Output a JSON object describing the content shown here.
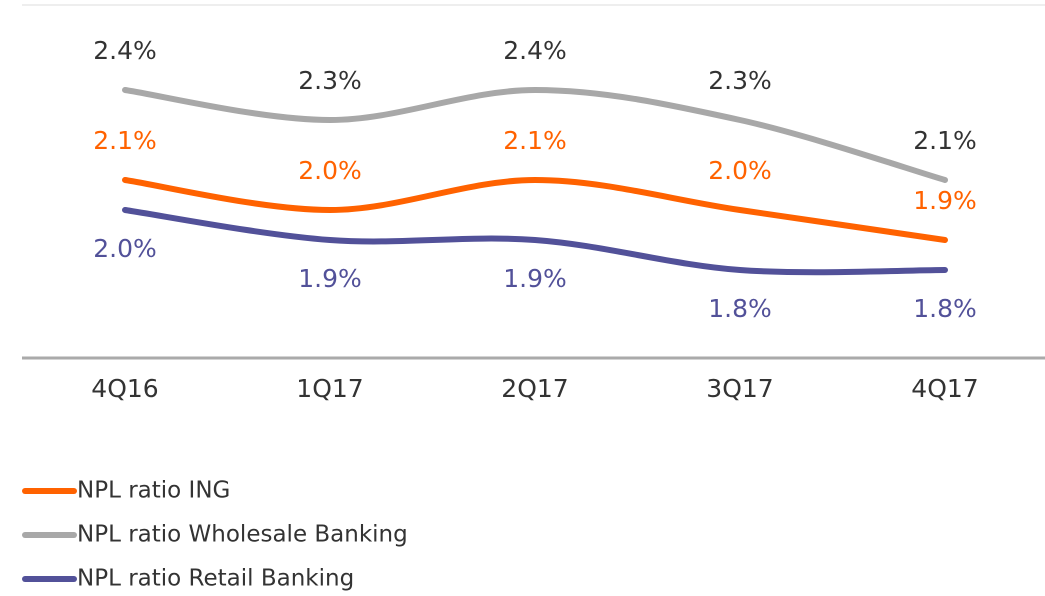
{
  "chart_data": {
    "type": "line",
    "categories": [
      "4Q16",
      "1Q17",
      "2Q17",
      "3Q17",
      "4Q17"
    ],
    "series": [
      {
        "name": "NPL ratio ING",
        "color": "#ff6200",
        "label_color": "#ff6200",
        "values": [
          2.1,
          2.0,
          2.1,
          2.0,
          1.9
        ],
        "value_labels": [
          "2.1%",
          "2.0%",
          "2.1%",
          "2.0%",
          "1.9%"
        ]
      },
      {
        "name": "NPL ratio Wholesale Banking",
        "color": "#a8a8a8",
        "label_color": "#333333",
        "values": [
          2.4,
          2.3,
          2.4,
          2.3,
          2.1
        ],
        "value_labels": [
          "2.4%",
          "2.3%",
          "2.4%",
          "2.3%",
          "2.1%"
        ]
      },
      {
        "name": "NPL ratio Retail Banking",
        "color": "#525199",
        "label_color": "#525199",
        "values": [
          2.0,
          1.9,
          1.9,
          1.8,
          1.8
        ],
        "value_labels": [
          "2.0%",
          "1.9%",
          "1.9%",
          "1.8%",
          "1.8%"
        ]
      }
    ],
    "ylim": [
      1.5,
      2.7
    ],
    "legend": "bottom-left"
  }
}
